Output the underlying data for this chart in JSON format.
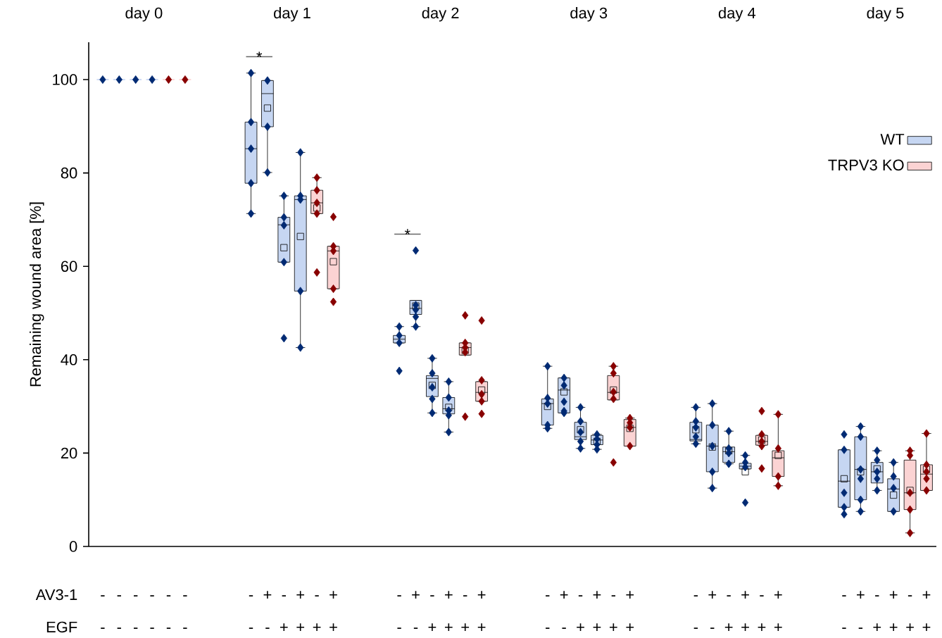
{
  "chart_data": {
    "type": "box",
    "ylabel": "Remaining wound area [%]",
    "ylim": [
      0,
      108
    ],
    "yticks": [
      0,
      20,
      40,
      60,
      80,
      100
    ],
    "legend": "top right",
    "marker": "diamond",
    "categories": [
      "-",
      "-",
      "-",
      "-",
      "-",
      "-",
      null,
      null,
      null,
      "-",
      "+",
      "-",
      "+",
      "-",
      "+",
      null,
      null,
      null,
      "-",
      "+",
      "-",
      "+",
      "-",
      "+",
      null,
      null,
      null,
      "-",
      "+",
      "-",
      "+",
      "-",
      "+",
      null,
      null,
      null,
      "-",
      "+",
      "-",
      "+",
      "-",
      "+",
      null,
      null,
      null,
      "-",
      "+",
      "-",
      "+",
      "-",
      "+"
    ],
    "annotations": [
      "AV3-1",
      "EGF",
      "day 0",
      "day 1",
      "day 2",
      "day 3",
      "day 4",
      "day 5",
      "-",
      "-",
      "-",
      "-",
      "-",
      "-",
      "-",
      "-",
      "+",
      "+",
      "+",
      "+",
      "-",
      "-",
      "+",
      "+",
      "+",
      "+",
      "-",
      "-",
      "+",
      "+",
      "+",
      "+",
      "-",
      "-",
      "+",
      "+",
      "+",
      "+",
      "-",
      "-",
      "+",
      "+",
      "+",
      "+",
      "*",
      "*"
    ],
    "series": [
      {
        "name": "WT",
        "color": "#c6d6f2",
        "boxes": [
          {
            "low": 100,
            "q1": 100,
            "median": 100,
            "q3": 100,
            "high": 100,
            "outliers": [
              100
            ]
          },
          {
            "low": 100,
            "q1": 100,
            "median": 100,
            "q3": 100,
            "high": 100,
            "outliers": [
              100
            ]
          },
          {
            "low": 100,
            "q1": 100,
            "median": 100,
            "q3": 100,
            "high": 100,
            "outliers": [
              100
            ]
          },
          {
            "low": 100,
            "q1": 100,
            "median": 100,
            "q3": 100,
            "high": 100,
            "outliers": [
              100
            ]
          },
          null,
          null,
          null,
          null,
          null,
          {
            "low": 71.3,
            "q1": 77.8,
            "median": 85.2,
            "q3": 90.9,
            "high": 101.4,
            "outliers": [
              101.4,
              90.9,
              85.2,
              77.8,
              71.3
            ]
          },
          {
            "low": 80.1,
            "q1": 89.9,
            "median": 97,
            "q3": 99.8,
            "high": 99.8,
            "mean": 93.9,
            "outliers": [
              99.8,
              89.9,
              80.1
            ]
          },
          {
            "low": 60.9,
            "q1": 60.9,
            "median": 68.9,
            "q3": 70.5,
            "high": 75.1,
            "mean": 64.0,
            "outliers": [
              75.1,
              70.5,
              68.8,
              60.9,
              44.6
            ]
          },
          {
            "low": 42.6,
            "q1": 54.7,
            "median": 74.3,
            "q3": 75.1,
            "high": 84.4,
            "mean": 66.4,
            "outliers": [
              84.4,
              75.1,
              74.3,
              54.7,
              42.6
            ]
          },
          null,
          null,
          null,
          null,
          null,
          {
            "low": 43.6,
            "q1": 43.6,
            "median": 44.4,
            "q3": 45.2,
            "high": 47.1,
            "outliers": [
              47.1,
              45.2,
              43.6,
              37.6
            ]
          },
          {
            "low": 47.1,
            "q1": 49.7,
            "median": 51,
            "q3": 52.7,
            "high": 52.7,
            "mean": 51.5,
            "outliers": [
              63.4,
              51.7,
              50.7,
              49.2,
              47.1
            ]
          },
          {
            "low": 28.6,
            "q1": 32.1,
            "median": 36.0,
            "q3": 36.6,
            "high": 40.3,
            "mean": 34.5,
            "outliers": [
              40.3,
              37.1,
              34.1,
              31.6,
              28.6
            ]
          },
          {
            "low": 24.5,
            "q1": 28.4,
            "median": 29.5,
            "q3": 31.9,
            "high": 35.3,
            "mean": 29.8,
            "outliers": [
              35.3,
              31.9,
              29.1,
              28.1,
              24.5
            ]
          },
          null,
          null,
          null,
          null,
          null,
          {
            "low": 25.3,
            "q1": 26.0,
            "median": 30.6,
            "q3": 31.6,
            "high": 38.6,
            "mean": 30,
            "outliers": [
              38.6,
              31.8,
              30.6,
              26.0,
              25.3
            ]
          },
          {
            "low": 28.6,
            "q1": 28.6,
            "median": 33.5,
            "q3": 36.1,
            "high": 36.1,
            "mean": 33.1,
            "outliers": [
              36.1,
              34.5,
              31.0,
              29.0,
              28.6
            ]
          },
          {
            "low": 21.0,
            "q1": 22.9,
            "median": 23.5,
            "q3": 26.6,
            "high": 29.8,
            "mean": 25.0,
            "outliers": [
              29.8,
              26.8,
              24.5,
              22.5,
              21.0
            ]
          },
          {
            "low": 20.8,
            "q1": 21.8,
            "median": 22.8,
            "q3": 23.8,
            "high": 24.0,
            "mean": 22.5,
            "outliers": [
              24.0,
              23.0,
              21.8,
              20.8
            ]
          },
          null,
          null,
          null,
          null,
          null,
          {
            "low": 22.0,
            "q1": 22.6,
            "median": 22.9,
            "q3": 26.6,
            "high": 29.8,
            "mean": 25.0,
            "outliers": [
              29.8,
              26.8,
              25.5,
              23.5,
              22.0
            ]
          },
          {
            "low": 12.5,
            "q1": 16.0,
            "median": 21.5,
            "q3": 26.0,
            "high": 30.6,
            "mean": 21.3,
            "outliers": [
              30.6,
              26.0,
              21.5,
              16.0,
              12.5
            ]
          },
          {
            "low": 17.7,
            "q1": 18.0,
            "median": 20.3,
            "q3": 21.3,
            "high": 24.7,
            "mean": 20.5,
            "outliers": [
              24.7,
              21.0,
              20.0,
              17.7
            ]
          },
          {
            "low": 16.6,
            "q1": 16.6,
            "median": 17.2,
            "q3": 17.8,
            "high": 19.5,
            "mean": 16.0,
            "outliers": [
              19.5,
              18.0,
              17.0,
              9.4
            ]
          },
          null,
          null,
          null,
          null,
          null,
          {
            "low": 8.4,
            "q1": 8.4,
            "median": 14.0,
            "q3": 20.7,
            "high": 20.7,
            "mean": 14.5,
            "outliers": [
              24.0,
              20.7,
              11.5,
              8.4,
              6.9
            ]
          },
          {
            "low": 7.5,
            "q1": 10.0,
            "median": 16.5,
            "q3": 23.5,
            "high": 25.7,
            "mean": 16.0,
            "outliers": [
              25.7,
              23.5,
              16.5,
              14.5,
              10.0,
              7.5
            ]
          },
          {
            "low": 12.0,
            "q1": 13.6,
            "median": 16.0,
            "q3": 18.0,
            "high": 20.5,
            "mean": 16.6,
            "outliers": [
              20.5,
              18.5,
              16.0,
              14.5,
              12.0
            ]
          },
          {
            "low": 7.5,
            "q1": 7.5,
            "median": 12.3,
            "q3": 14.5,
            "high": 18.0,
            "mean": 11.0,
            "outliers": [
              18.0,
              15.0,
              12.5,
              7.5
            ]
          },
          null,
          null
        ]
      },
      {
        "name": "TRPV3 KO",
        "color": "#fbd3d3",
        "boxes": [
          null,
          null,
          null,
          null,
          {
            "low": 100,
            "q1": 100,
            "median": 100,
            "q3": 100,
            "high": 100,
            "outliers": [
              100
            ]
          },
          {
            "low": 100,
            "q1": 100,
            "median": 100,
            "q3": 100,
            "high": 100,
            "outliers": [
              100
            ]
          },
          null,
          null,
          null,
          null,
          null,
          null,
          null,
          {
            "low": 71.3,
            "q1": 71.3,
            "median": 73.6,
            "q3": 76.3,
            "high": 79.0,
            "mean": 72.5,
            "outliers": [
              79.0,
              76.3,
              73.6,
              71.3,
              58.7
            ]
          },
          {
            "low": 55.2,
            "q1": 55.2,
            "median": 63.3,
            "q3": 64.3,
            "high": 64.3,
            "mean": 61.0,
            "outliers": [
              70.6,
              64.3,
              63.3,
              55.2,
              52.4
            ]
          },
          null,
          null,
          null,
          null,
          null,
          null,
          null,
          {
            "low": 41.0,
            "q1": 41.0,
            "median": 42.6,
            "q3": 43.6,
            "high": 43.6,
            "mean": 42.0,
            "outliers": [
              49.5,
              43.6,
              42.6,
              41.6,
              27.8
            ]
          },
          {
            "low": 31.1,
            "q1": 31.1,
            "median": 33.0,
            "q3": 35.3,
            "high": 35.3,
            "mean": 33.5,
            "outliers": [
              48.4,
              35.6,
              32.6,
              31.1,
              28.4
            ]
          },
          null,
          null,
          null,
          null,
          null,
          null,
          null,
          {
            "low": 31.4,
            "q1": 31.4,
            "median": 33.0,
            "q3": 36.6,
            "high": 38.6,
            "mean": 33.5,
            "outliers": [
              38.6,
              37.1,
              33.1,
              31.6,
              18.0
            ]
          },
          {
            "low": 21.5,
            "q1": 21.5,
            "median": 25.5,
            "q3": 27.2,
            "high": 27.5,
            "mean": 25.3,
            "outliers": [
              27.5,
              26.5,
              25.5,
              21.5
            ]
          },
          null,
          null,
          null,
          null,
          null,
          null,
          null,
          {
            "low": 21.7,
            "q1": 21.7,
            "median": 22.5,
            "q3": 23.8,
            "high": 23.8,
            "mean": 22.8,
            "outliers": [
              29.0,
              24.0,
              22.5,
              21.5,
              16.7
            ]
          },
          {
            "low": 13.0,
            "q1": 15.0,
            "median": 19.0,
            "q3": 20.5,
            "high": 28.3,
            "mean": 19.5,
            "outliers": [
              28.3,
              21.0,
              15.0,
              13.0
            ]
          },
          null,
          null,
          null,
          null,
          null,
          null,
          null,
          {
            "low": 2.9,
            "q1": 7.9,
            "median": 11.5,
            "q3": 18.5,
            "high": 20.5,
            "mean": 12.0,
            "outliers": [
              20.5,
              19.5,
              11.5,
              7.9,
              2.9
            ]
          },
          {
            "low": 12.0,
            "q1": 12.0,
            "median": 15.5,
            "q3": 17.5,
            "high": 24.2,
            "mean": 16.5,
            "outliers": [
              24.2,
              17.5,
              16.0,
              14.5,
              12.0
            ]
          }
        ]
      }
    ]
  }
}
